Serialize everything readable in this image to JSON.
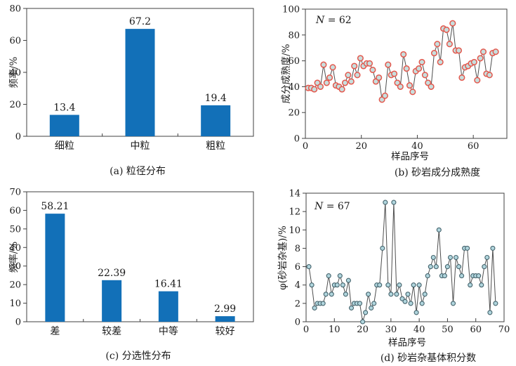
{
  "figure_title": "",
  "colors": {
    "bar_blue": "#1270b8",
    "axis": "#404040",
    "text": "#1a1a1a",
    "line_gray": "#4d4d4d",
    "marker_red_edge": "#e4584d",
    "marker_blue_fill": "#c7dedd",
    "marker_dark_edge": "#44626b",
    "marker_light_fill": "#b0d5dd"
  },
  "chart_data": [
    {
      "id": "a",
      "type": "bar",
      "caption": "(a) 粒径分布",
      "ylabel": "频率/%",
      "categories": [
        "细粒",
        "中粒",
        "粗粒"
      ],
      "values": [
        13.4,
        67.2,
        19.4
      ],
      "value_labels": [
        "13.4",
        "67.2",
        "19.4"
      ],
      "ylim": [
        0,
        80
      ],
      "ytick_step": 20,
      "grid": false,
      "bar_color": "#1270b8"
    },
    {
      "id": "b",
      "type": "line-scatter",
      "caption": "(b) 砂岩成分成熟度",
      "ylabel": "成分成熟度/%",
      "xlabel": "样品序号",
      "annotation": {
        "var": "N",
        "rest": " = 62"
      },
      "n_samples": 62,
      "ylim": [
        0,
        100
      ],
      "yticks": [
        0,
        20,
        40,
        60,
        80,
        100
      ],
      "xlim": [
        0,
        72
      ],
      "xticks": [
        0,
        20,
        40,
        60
      ],
      "x_start": 1,
      "x_end": 68,
      "grid": false,
      "values": [
        39,
        39,
        38,
        43,
        40,
        57,
        43,
        47,
        55,
        41,
        40,
        38,
        43,
        49,
        44,
        56,
        49,
        62,
        56,
        58,
        58,
        53,
        44,
        47,
        30,
        33,
        57,
        49,
        50,
        43,
        40,
        65,
        54,
        41,
        36,
        52,
        54,
        59,
        49,
        43,
        40,
        66,
        73,
        59,
        85,
        84,
        73,
        89,
        68,
        68,
        47,
        55,
        56,
        58,
        59,
        45,
        62,
        67,
        50,
        49,
        66,
        67
      ],
      "marker_fill": "#c7dedd",
      "marker_edge": "#e4584d",
      "line_color": "#4d4d4d"
    },
    {
      "id": "c",
      "type": "bar",
      "caption": "(c) 分选性分布",
      "ylabel": "频率/%",
      "categories": [
        "差",
        "较差",
        "中等",
        "较好"
      ],
      "values": [
        58.21,
        22.39,
        16.41,
        2.99
      ],
      "value_labels": [
        "58.21",
        "22.39",
        "16.41",
        "2.99"
      ],
      "ylim": [
        0,
        70
      ],
      "ytick_step": 10,
      "grid": false,
      "bar_color": "#1270b8"
    },
    {
      "id": "d",
      "type": "line-scatter",
      "caption": "(d) 砂岩杂基体积分数",
      "ylabel": "φ(砂岩杂基)/%",
      "xlabel": "样品序号",
      "annotation": {
        "var": "N",
        "rest": " = 67"
      },
      "n_samples": 67,
      "ylim": [
        0,
        14
      ],
      "yticks": [
        0,
        2,
        4,
        6,
        8,
        10,
        12,
        14
      ],
      "xlim": [
        0,
        70
      ],
      "xticks": [
        0,
        10,
        20,
        30,
        40,
        50,
        60,
        70
      ],
      "x_start": 1,
      "x_end": 67,
      "grid": false,
      "values": [
        6,
        4,
        1.5,
        2,
        2,
        2,
        3,
        5,
        3,
        4,
        4,
        5,
        4,
        3,
        4.5,
        1.5,
        2,
        2,
        2,
        0,
        1,
        3,
        1.5,
        2,
        4,
        4,
        8,
        13,
        4,
        3,
        13,
        3,
        4,
        2.5,
        2.2,
        3,
        2,
        4,
        1,
        4,
        2,
        3,
        5,
        6,
        7,
        6,
        10,
        5,
        5,
        6,
        7,
        2,
        7,
        6,
        5,
        8,
        8,
        4,
        5,
        5,
        5,
        4,
        6,
        7,
        1,
        8,
        2
      ],
      "marker_fill": "#b0d5dd",
      "marker_edge": "#44626b",
      "line_color": "#4d4d4d"
    }
  ]
}
